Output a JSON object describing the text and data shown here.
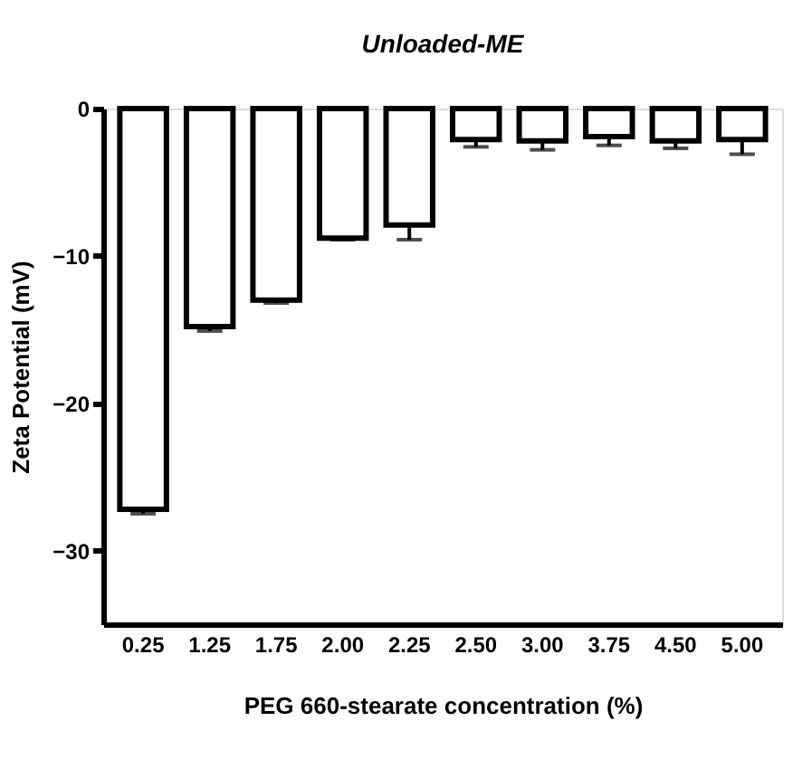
{
  "chart_data": {
    "type": "bar",
    "title": "Unloaded-ME",
    "xlabel": "PEG 660-stearate concentration (%)",
    "ylabel": "Zeta Potential (mV)",
    "categories": [
      "0.25",
      "1.25",
      "1.75",
      "2.00",
      "2.25",
      "2.50",
      "3.00",
      "3.75",
      "4.50",
      "5.00"
    ],
    "values": [
      -27.2,
      -14.8,
      -13.0,
      -8.8,
      -7.9,
      -2.1,
      -2.2,
      -1.9,
      -2.2,
      -2.1
    ],
    "errors": [
      0.3,
      0.3,
      0.2,
      0.1,
      1.0,
      0.5,
      0.6,
      0.6,
      0.5,
      1.0
    ],
    "color": "#ffffff",
    "ylim": [
      -35,
      0
    ],
    "yticks": [
      0,
      -10,
      -20,
      -30
    ],
    "grid": false
  }
}
